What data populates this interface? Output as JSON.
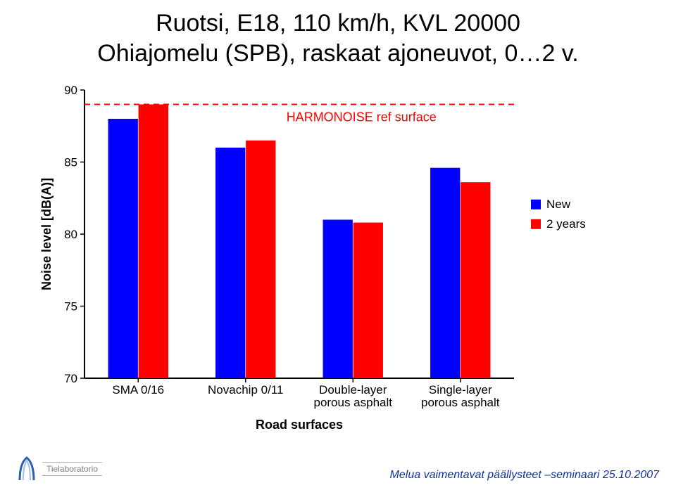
{
  "title_line1": "Ruotsi, E18, 110 km/h, KVL 20000",
  "title_line2": "Ohiajomelu (SPB), raskaat ajoneuvot, 0…2 v.",
  "footer_lab": "Tielaboratorio",
  "footer_right": "Melua vaimentavat päällysteet –seminaari 25.10.2007",
  "chart": {
    "type": "bar",
    "x_label": "Road surfaces",
    "y_label": "Noise level [dB(A)]",
    "y_min": 70,
    "y_max": 90,
    "y_tick_step": 5,
    "categories": [
      {
        "label_lines": [
          "SMA 0/16"
        ]
      },
      {
        "label_lines": [
          "Novachip 0/11"
        ]
      },
      {
        "label_lines": [
          "Double-layer",
          "porous asphalt"
        ]
      },
      {
        "label_lines": [
          "Single-layer",
          "porous asphalt"
        ]
      }
    ],
    "series": [
      {
        "name": "New",
        "color": "#0000ff",
        "values": [
          88.0,
          86.0,
          81.0,
          84.6
        ]
      },
      {
        "name": "2 years",
        "color": "#ff0000",
        "values": [
          89.0,
          86.5,
          80.8,
          83.6
        ]
      }
    ],
    "ref_line": {
      "value": 89.0,
      "label": "HARMONOISE ref surface",
      "color": "#ff0000",
      "style": "dashed"
    },
    "axis_color": "#000000",
    "label_fontsize": 17,
    "axis_title_fontsize": 18,
    "legend_fontsize": 17,
    "legend_marker_size": 14,
    "background": "#ffffff",
    "bar_group_width": 0.56,
    "bar_gap_within_group": 0.005
  }
}
